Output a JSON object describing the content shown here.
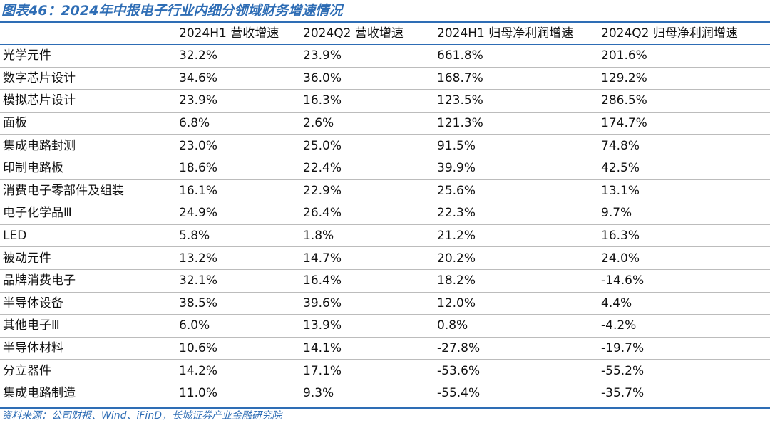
{
  "title": "图表46：2024年中报电子行业内细分领域财务增速情况",
  "table": {
    "headers": [
      "",
      "2024H1 营收增速",
      "2024Q2 营收增速",
      "2024H1 归母净利润增速",
      "2024Q2 归母净利润增速"
    ],
    "rows": [
      [
        "光学元件",
        "32.2%",
        "23.9%",
        "661.8%",
        "201.6%"
      ],
      [
        "数字芯片设计",
        "34.6%",
        "36.0%",
        "168.7%",
        "129.2%"
      ],
      [
        "模拟芯片设计",
        "23.9%",
        "16.3%",
        "123.5%",
        "286.5%"
      ],
      [
        "面板",
        "6.8%",
        "2.6%",
        "121.3%",
        "174.7%"
      ],
      [
        "集成电路封测",
        "23.0%",
        "25.0%",
        "91.5%",
        "74.8%"
      ],
      [
        "印制电路板",
        "18.6%",
        "22.4%",
        "39.9%",
        "42.5%"
      ],
      [
        "消费电子零部件及组装",
        "16.1%",
        "22.9%",
        "25.6%",
        "13.1%"
      ],
      [
        "电子化学品Ⅲ",
        "24.9%",
        "26.4%",
        "22.3%",
        "9.7%"
      ],
      [
        "LED",
        "5.8%",
        "1.8%",
        "21.2%",
        "16.3%"
      ],
      [
        "被动元件",
        "13.2%",
        "14.7%",
        "20.2%",
        "24.0%"
      ],
      [
        "品牌消费电子",
        "32.1%",
        "16.4%",
        "18.2%",
        "-14.6%"
      ],
      [
        "半导体设备",
        "38.5%",
        "39.6%",
        "12.0%",
        "4.4%"
      ],
      [
        "其他电子Ⅲ",
        "6.0%",
        "13.9%",
        "0.8%",
        "-4.2%"
      ],
      [
        "半导体材料",
        "10.6%",
        "14.1%",
        "-27.8%",
        "-19.7%"
      ],
      [
        "分立器件",
        "14.2%",
        "17.1%",
        "-53.6%",
        "-55.2%"
      ],
      [
        "集成电路制造",
        "11.0%",
        "9.3%",
        "-55.4%",
        "-35.7%"
      ]
    ]
  },
  "source": "资料来源：公司财报、Wind、iFinD，长城证券产业金融研究院",
  "colors": {
    "accent": "#2e6db5",
    "row_rule": "#bcbcbc",
    "text": "#111111"
  }
}
